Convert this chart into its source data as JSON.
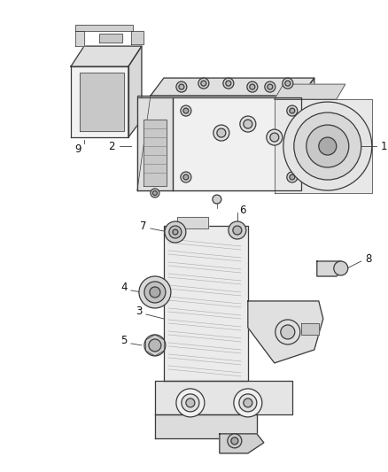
{
  "background_color": "#ffffff",
  "line_color": "#3a3a3a",
  "figsize": [
    4.38,
    5.33
  ],
  "dpi": 100,
  "label_fontsize": 8.5,
  "lw_main": 0.9,
  "lw_thin": 0.5
}
